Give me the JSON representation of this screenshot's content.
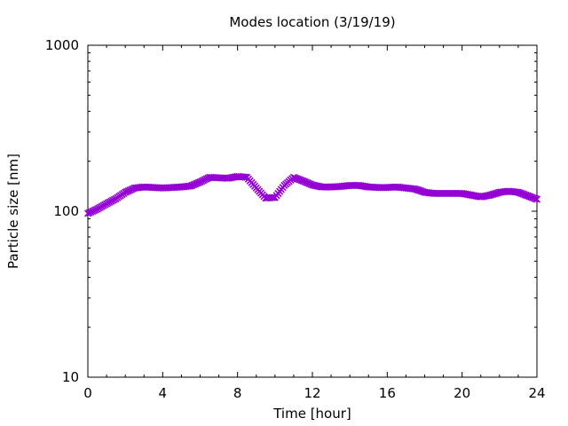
{
  "chart_data": {
    "type": "line",
    "title": "Modes location (3/19/19)",
    "xlabel": "Time [hour]",
    "ylabel": "Particle size [nm]",
    "xlim": [
      0,
      24
    ],
    "ylim": [
      10,
      1000
    ],
    "y_scale": "log",
    "grid": false,
    "legend": "none",
    "x_ticks": [
      0,
      4,
      8,
      12,
      16,
      20,
      24
    ],
    "y_ticks": [
      10,
      100,
      1000
    ],
    "x_tick_labels": [
      "0",
      "4",
      "8",
      "12",
      "16",
      "20",
      "24"
    ],
    "y_tick_labels": [
      "10",
      "100",
      "1000"
    ],
    "series": [
      {
        "color": "#9400d3",
        "marker": "cross",
        "x": [
          0,
          0.5,
          1,
          1.5,
          2,
          2.5,
          3,
          3.5,
          4,
          4.5,
          5,
          5.5,
          6,
          6.5,
          7,
          7.5,
          8,
          8.5,
          9,
          9.5,
          10,
          10.5,
          11,
          11.5,
          12,
          12.5,
          13,
          13.5,
          14,
          14.5,
          15,
          15.5,
          16,
          16.5,
          17,
          17.5,
          18,
          18.5,
          19,
          19.5,
          20,
          20.5,
          21,
          21.5,
          22,
          22.5,
          23,
          23.5,
          24
        ],
        "y": [
          97,
          103,
          111,
          119,
          130,
          138,
          140,
          139,
          138,
          139,
          140,
          142,
          150,
          160,
          159,
          158,
          162,
          160,
          138,
          120,
          121,
          143,
          160,
          152,
          144,
          140,
          140,
          141,
          143,
          143,
          140,
          139,
          139,
          140,
          138,
          136,
          130,
          128,
          128,
          128,
          128,
          125,
          122,
          125,
          130,
          132,
          130,
          124,
          118
        ]
      }
    ]
  }
}
